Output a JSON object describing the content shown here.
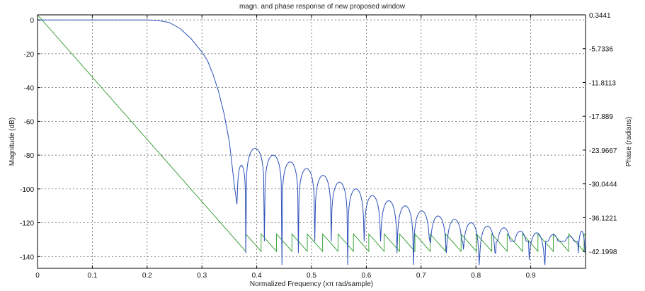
{
  "chart_data": {
    "type": "line",
    "title": "magn. and phase response of new proposed window",
    "xlabel": "Normalized Frequency (xπ rad/sample)",
    "ylabel_left": "Magnitude (dB)",
    "ylabel_right": "Phase (radians)",
    "xlim": [
      0,
      1
    ],
    "ylim_left": [
      -147,
      3
    ],
    "ylim_right": [
      -45.24,
      0.345
    ],
    "x_ticks": [
      0,
      0.1,
      0.2,
      0.3,
      0.4,
      0.5,
      0.6,
      0.7,
      0.8,
      0.9
    ],
    "x_tick_labels": [
      "0",
      "0.1",
      "0.2",
      "0.3",
      "0.4",
      "0.5",
      "0.6",
      "0.7",
      "0.8",
      "0.9"
    ],
    "y_left_ticks": [
      0,
      -20,
      -40,
      -60,
      -80,
      -100,
      -120,
      -140
    ],
    "y_left_tick_labels": [
      "0",
      "-20",
      "-40",
      "-60",
      "-80",
      "-100",
      "-120",
      "-140"
    ],
    "y_right_ticks": [
      0.3441,
      -5.7336,
      -11.8113,
      -17.889,
      -23.9667,
      -30.0444,
      -36.1221,
      -42.1998
    ],
    "y_right_tick_labels": [
      "0.3441",
      "-5.7336",
      "-11.8113",
      "-17.889",
      "-23.9667",
      "-30.0444",
      "-36.1221",
      "-42.1998"
    ],
    "grid": true,
    "colors": {
      "magnitude": "#2b50b8",
      "phase": "#2a9a2a",
      "grid": "#555555",
      "axes": "#000000"
    },
    "magnitude_passband": [
      [
        0,
        0
      ],
      [
        0.2,
        0
      ],
      [
        0.22,
        -0.3
      ],
      [
        0.24,
        -1.5
      ],
      [
        0.26,
        -5
      ],
      [
        0.28,
        -11
      ],
      [
        0.3,
        -19
      ],
      [
        0.31,
        -24
      ],
      [
        0.32,
        -32
      ],
      [
        0.33,
        -42
      ],
      [
        0.34,
        -55
      ],
      [
        0.35,
        -72
      ],
      [
        0.36,
        -100
      ],
      [
        0.364,
        -109
      ]
    ],
    "magnitude_sidelobes": [
      {
        "x0": 0.364,
        "x1": 0.38,
        "peak": -86
      },
      {
        "x0": 0.38,
        "x1": 0.414,
        "peak": -76
      },
      {
        "x0": 0.414,
        "x1": 0.446,
        "peak": -80
      },
      {
        "x0": 0.446,
        "x1": 0.476,
        "peak": -84
      },
      {
        "x0": 0.476,
        "x1": 0.506,
        "peak": -88
      },
      {
        "x0": 0.506,
        "x1": 0.536,
        "peak": -92
      },
      {
        "x0": 0.536,
        "x1": 0.566,
        "peak": -96
      },
      {
        "x0": 0.566,
        "x1": 0.596,
        "peak": -100
      },
      {
        "x0": 0.596,
        "x1": 0.626,
        "peak": -104
      },
      {
        "x0": 0.626,
        "x1": 0.656,
        "peak": -107
      },
      {
        "x0": 0.656,
        "x1": 0.686,
        "peak": -110
      },
      {
        "x0": 0.686,
        "x1": 0.716,
        "peak": -113
      },
      {
        "x0": 0.716,
        "x1": 0.746,
        "peak": -116
      },
      {
        "x0": 0.746,
        "x1": 0.776,
        "peak": -118
      },
      {
        "x0": 0.776,
        "x1": 0.806,
        "peak": -120
      },
      {
        "x0": 0.806,
        "x1": 0.836,
        "peak": -122
      },
      {
        "x0": 0.836,
        "x1": 0.866,
        "peak": -123
      },
      {
        "x0": 0.866,
        "x1": 0.896,
        "peak": -125
      },
      {
        "x0": 0.896,
        "x1": 0.926,
        "peak": -126
      },
      {
        "x0": 0.926,
        "x1": 0.956,
        "peak": -127
      },
      {
        "x0": 0.956,
        "x1": 0.986,
        "peak": -128
      },
      {
        "x0": 0.986,
        "x1": 1.0,
        "peak": -125
      }
    ],
    "phase_linear": [
      [
        0,
        0.3441
      ],
      [
        0.38,
        -42.1998
      ]
    ],
    "phase_sawtooth_end": 1.0,
    "phase_jump": 3.1416
  }
}
